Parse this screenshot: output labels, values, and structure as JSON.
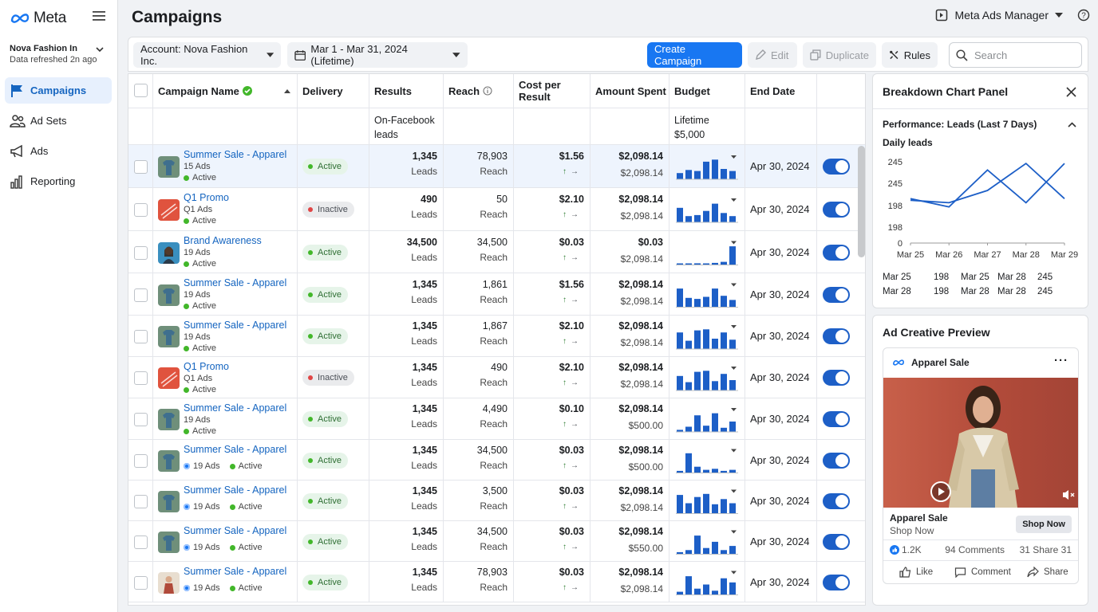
{
  "app": {
    "logo": "Meta",
    "product": "Meta Ads Manager"
  },
  "account": {
    "name": "Nova Fashion In",
    "refreshed": "Data refreshed 2n ago"
  },
  "nav": [
    {
      "label": "Campaigns",
      "icon": "flag-icon"
    },
    {
      "label": "Ad Sets",
      "icon": "people-icon"
    },
    {
      "label": "Ads",
      "icon": "megaphone-icon"
    },
    {
      "label": "Reporting",
      "icon": "bar-chart-icon"
    }
  ],
  "page": {
    "title": "Campaigns"
  },
  "toolbar": {
    "account_select": "Account: Nova Fashion Inc.",
    "date_range": "Mar 1 - Mar 31, 2024 (Lifetime)",
    "create": "Create Campaign",
    "edit": "Edit",
    "duplicate": "Duplicate",
    "rules": "Rules",
    "search_placeholder": "Search"
  },
  "table": {
    "headers": {
      "name": "Campaign Name",
      "delivery": "Delivery",
      "results": "Results",
      "reach": "Reach",
      "cpr": "Cost per Result",
      "spent": "Amount Spent",
      "budget": "Budget",
      "end": "End Date"
    },
    "subheaders": {
      "results": "On-Facebook leads",
      "budget": "Lifetime $5,000"
    },
    "rows": [
      {
        "name": "Summer Sale - Apparel",
        "ads": "15 Ads",
        "status": "Active",
        "layout": "stack",
        "delivery": "Active",
        "results": "1,345",
        "results_unit": "Leads",
        "reach": "78,903",
        "reach_unit": "Reach",
        "cpr": "$1.56",
        "spent": "$2,098.14",
        "spent2": "$2,098.14",
        "spark": [
          0.3,
          0.45,
          0.4,
          0.85,
          0.95,
          0.5,
          0.4
        ],
        "end": "Apr 30, 2024",
        "thumb": "shirt",
        "selected": true
      },
      {
        "name": "Q1 Promo",
        "ads": "Q1 Ads",
        "status": "Active",
        "layout": "stack",
        "delivery": "Inactive",
        "results": "490",
        "results_unit": "Leads",
        "reach": "50",
        "reach_unit": "Reach",
        "cpr": "$2.10",
        "spent": "$2,098.14",
        "spent2": "$2,098.14",
        "spark": [
          0.7,
          0.3,
          0.35,
          0.55,
          0.9,
          0.45,
          0.3
        ],
        "end": "Apr 30, 2024",
        "thumb": "promo"
      },
      {
        "name": "Brand Awareness",
        "ads": "19 Ads",
        "status": "Active",
        "layout": "stack",
        "delivery": "Active",
        "results": "34,500",
        "results_unit": "Leads",
        "reach": "34,500",
        "reach_unit": "Reach",
        "cpr": "$0.03",
        "spent": "$0.03",
        "spent2": "$2,098.14",
        "spark": [
          0.05,
          0.05,
          0.08,
          0.05,
          0.1,
          0.15,
          0.9
        ],
        "end": "Apr 30, 2024",
        "thumb": "person"
      },
      {
        "name": "Summer Sale - Apparel",
        "ads": "19 Ads",
        "status": "Active",
        "layout": "stack",
        "delivery": "Active",
        "results": "1,345",
        "results_unit": "Leads",
        "reach": "1,861",
        "reach_unit": "Reach",
        "cpr": "$1.56",
        "spent": "$2,098.14",
        "spent2": "$2,098.14",
        "spark": [
          0.9,
          0.45,
          0.4,
          0.5,
          0.9,
          0.55,
          0.35
        ],
        "end": "Apr 30, 2024",
        "thumb": "shirt"
      },
      {
        "name": "Summer Sale - Apparel",
        "ads": "19 Ads",
        "status": "Active",
        "layout": "stack",
        "delivery": "Active",
        "results": "1,345",
        "results_unit": "Leads",
        "reach": "1,867",
        "reach_unit": "Reach",
        "cpr": "$2.10",
        "spent": "$2,098.14",
        "spent2": "$2,098.14",
        "spark": [
          0.8,
          0.4,
          0.9,
          0.95,
          0.5,
          0.8,
          0.45
        ],
        "end": "Apr 30, 2024",
        "thumb": "shirt"
      },
      {
        "name": "Q1 Promo",
        "ads": "Q1 Ads",
        "status": "Active",
        "layout": "stack",
        "delivery": "Inactive",
        "results": "1,345",
        "results_unit": "Leads",
        "reach": "490",
        "reach_unit": "Reach",
        "cpr": "$2.10",
        "spent": "$2,098.14",
        "spent2": "$2,098.14",
        "spark": [
          0.7,
          0.4,
          0.9,
          0.95,
          0.45,
          0.8,
          0.5
        ],
        "end": "Apr 30, 2024",
        "thumb": "promo"
      },
      {
        "name": "Summer Sale - Apparel",
        "ads": "19 Ads",
        "status": "Active",
        "layout": "stack",
        "delivery": "Active",
        "results": "1,345",
        "results_unit": "Leads",
        "reach": "4,490",
        "reach_unit": "Reach",
        "cpr": "$0.10",
        "spent": "$2,098.14",
        "spent2": "$500.00",
        "spark": [
          0.1,
          0.25,
          0.8,
          0.3,
          0.9,
          0.2,
          0.5
        ],
        "end": "Apr 30, 2024",
        "thumb": "shirt"
      },
      {
        "name": "Summer Sale - Apparel",
        "ads": "19 Ads",
        "status": "Active",
        "layout": "inline",
        "delivery": "Active",
        "results": "1,345",
        "results_unit": "Leads",
        "reach": "34,500",
        "reach_unit": "Reach",
        "cpr": "$0.03",
        "spent": "$2,098.14",
        "spent2": "$500.00",
        "spark": [
          0.1,
          0.95,
          0.3,
          0.15,
          0.2,
          0.1,
          0.15
        ],
        "end": "Apr 30, 2024",
        "thumb": "shirt"
      },
      {
        "name": "Summer Sale - Apparel",
        "ads": "19 Ads",
        "status": "Active",
        "layout": "inline",
        "delivery": "Active",
        "results": "1,345",
        "results_unit": "Leads",
        "reach": "3,500",
        "reach_unit": "Reach",
        "cpr": "$0.03",
        "spent": "$2,098.14",
        "spent2": "$2,098.14",
        "spark": [
          0.9,
          0.5,
          0.8,
          0.95,
          0.45,
          0.7,
          0.5
        ],
        "end": "Apr 30, 2024",
        "thumb": "shirt"
      },
      {
        "name": "Summer Sale - Apparel",
        "ads": "19 Ads",
        "status": "Active",
        "layout": "inline",
        "delivery": "Active",
        "results": "1,345",
        "results_unit": "Leads",
        "reach": "34,500",
        "reach_unit": "Reach",
        "cpr": "$0.03",
        "spent": "$2,098.14",
        "spent2": "$550.00",
        "spark": [
          0.1,
          0.2,
          0.9,
          0.3,
          0.6,
          0.2,
          0.4
        ],
        "end": "Apr 30, 2024",
        "thumb": "shirt"
      },
      {
        "name": "Summer Sale - Apparel",
        "ads": "19 Ads",
        "status": "Active",
        "layout": "inline",
        "delivery": "Active",
        "results": "1,345",
        "results_unit": "Leads",
        "reach": "78,903",
        "reach_unit": "Reach",
        "cpr": "$0.03",
        "spent": "$2,098.14",
        "spent2": "$2,098.14",
        "spark": [
          0.15,
          0.9,
          0.3,
          0.5,
          0.2,
          0.8,
          0.6
        ],
        "end": "Apr 30, 2024",
        "thumb": "woman"
      }
    ]
  },
  "breakdown": {
    "title": "Breakdown Chart Panel",
    "section": "Performance: Leads (Last 7 Days)",
    "chart_title": "Daily leads",
    "y_labels": [
      "245",
      "245",
      "198",
      "198",
      "0"
    ],
    "x_labels": [
      "Mar 25",
      "Mar 26",
      "Mar 27",
      "Mar 28",
      "Mar 29"
    ],
    "summary": [
      [
        "Mar 25",
        "198",
        "Mar 25",
        "Mar 28",
        "245"
      ],
      [
        "Mar 28",
        "198",
        "Mar 28",
        "Mar 28",
        "245"
      ]
    ],
    "colors": {
      "line": "#1d5fc7"
    }
  },
  "chart_data": {
    "type": "line",
    "title": "Daily leads",
    "x": [
      "Mar 25",
      "Mar 26",
      "Mar 27",
      "Mar 28",
      "Mar 29"
    ],
    "series": [
      {
        "values": [
          205,
          195,
          240,
          200,
          248
        ]
      },
      {
        "values": [
          203,
          200,
          215,
          248,
          205
        ]
      }
    ]
  },
  "creative": {
    "title": "Ad Creative Preview",
    "page_name": "Apparel Sale",
    "headline": "Apparel Sale",
    "cta_text": "Shop Now",
    "cta_button": "Shop Now",
    "likes": "1.2K",
    "comments": "94 Comments",
    "shares": "31 Share 31",
    "actions": [
      "Like",
      "Comment",
      "Share"
    ]
  }
}
